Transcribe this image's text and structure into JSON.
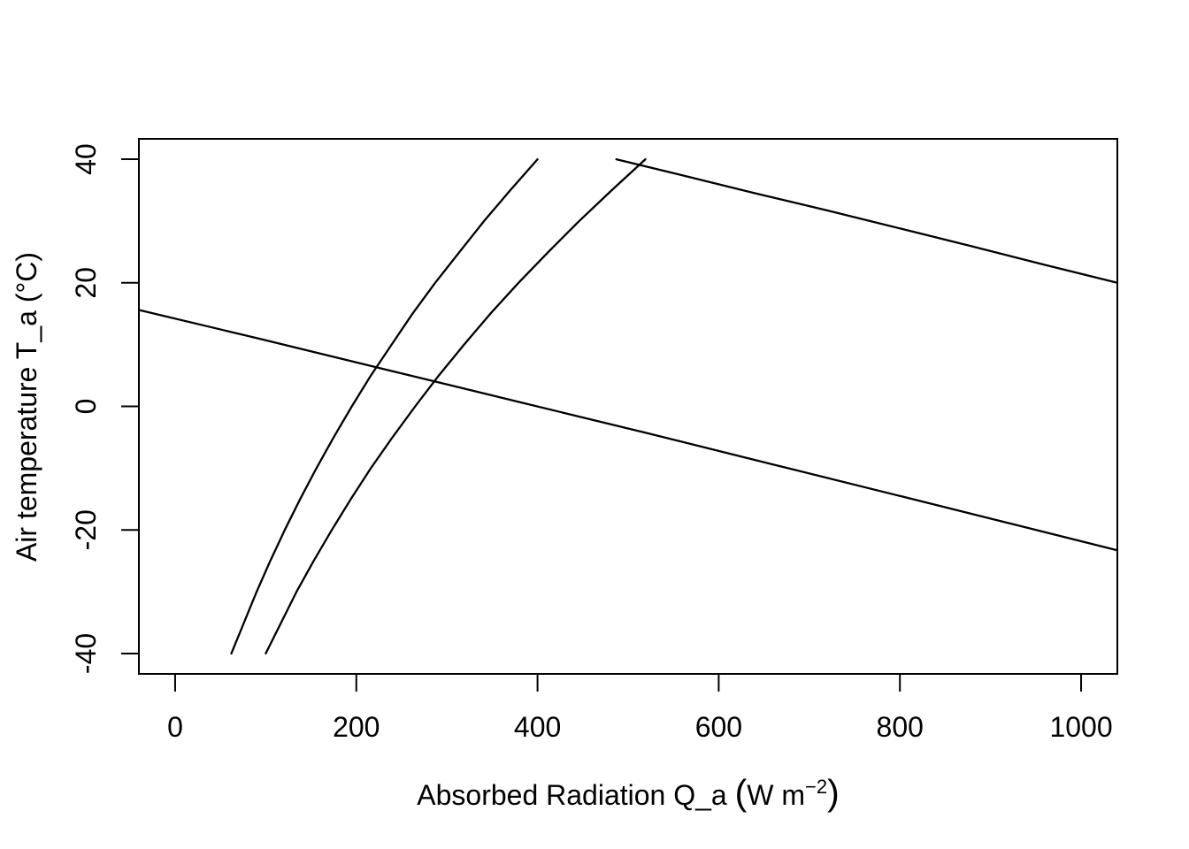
{
  "figure": {
    "background_color": "#ffffff",
    "title": ""
  },
  "chart_data": {
    "type": "line",
    "title": "",
    "xlabel_full": "Absorbed Radiation Q_a (W m−2)",
    "xlabel_parts": {
      "main": "Absorbed Radiation Q_a ",
      "paren_open": "(",
      "unit": "W m",
      "superscript": "−2",
      "paren_close": ")"
    },
    "ylabel": "Air temperature T_a (°C)",
    "xlim": [
      -40,
      1040
    ],
    "ylim": [
      -43.3,
      43.3
    ],
    "x_ticks": [
      0,
      200,
      400,
      600,
      800,
      1000
    ],
    "y_ticks": [
      -40,
      -20,
      0,
      20,
      40
    ],
    "grid": false,
    "legend": "none",
    "line_color": "#000000",
    "series": [
      {
        "name": "radiation-curve-left",
        "description": "steep rising curve, lower absorbed radiation",
        "x": [
          62,
          76,
          90,
          105,
          121,
          138,
          156,
          175,
          195,
          216,
          239,
          262,
          287,
          314,
          341,
          370,
          400
        ],
        "y": [
          -40,
          -35,
          -30,
          -25,
          -20,
          -15,
          -10,
          -5,
          0,
          5,
          10,
          15,
          20,
          25,
          30,
          35,
          40
        ]
      },
      {
        "name": "radiation-curve-right",
        "description": "steep rising curve, higher absorbed radiation",
        "x": [
          100,
          117,
          134,
          153,
          173,
          194,
          216,
          240,
          265,
          291,
          319,
          348,
          379,
          412,
          446,
          482,
          519
        ],
        "y": [
          -40,
          -35,
          -30,
          -25,
          -20,
          -15,
          -10,
          -5,
          0,
          5,
          10,
          15,
          20,
          25,
          30,
          35,
          40
        ]
      },
      {
        "name": "budget-line-upper",
        "description": "gently descending line from (487, 40) to right edge",
        "x": [
          487,
          560,
          640,
          720,
          800,
          880,
          960,
          1040
        ],
        "y": [
          40,
          37.4,
          34.5,
          31.7,
          28.8,
          25.9,
          22.9,
          20
        ]
      },
      {
        "name": "budget-line-lower",
        "description": "gently descending line crossing both curves",
        "x": [
          -40,
          100,
          240,
          380,
          520,
          660,
          800,
          920,
          1040
        ],
        "y": [
          15.6,
          10.7,
          5.7,
          0.7,
          -4.3,
          -9.4,
          -14.5,
          -18.9,
          -23.3
        ]
      }
    ]
  }
}
